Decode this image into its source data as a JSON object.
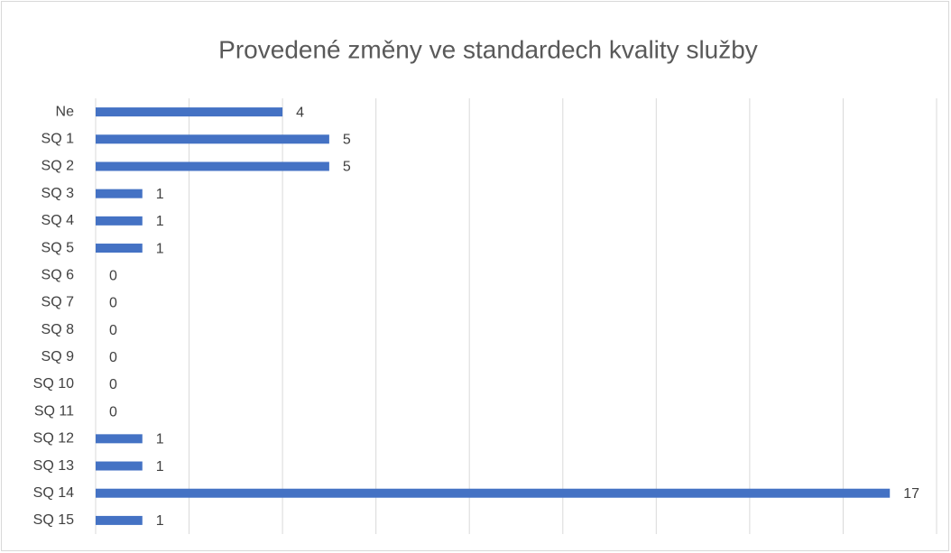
{
  "chart_data": {
    "type": "barh",
    "title": "Provedené změny ve standardech kvality služby",
    "categories": [
      "Ne",
      "SQ 1",
      "SQ 2",
      "SQ 3",
      "SQ 4",
      "SQ 5",
      "SQ 6",
      "SQ 7",
      "SQ 8",
      "SQ 9",
      "SQ 10",
      "SQ 11",
      "SQ 12",
      "SQ 13",
      "SQ 14",
      "SQ 15"
    ],
    "values": [
      4,
      5,
      5,
      1,
      1,
      1,
      0,
      0,
      0,
      0,
      0,
      0,
      1,
      1,
      17,
      1
    ],
    "color": "#4472c4",
    "xlim": [
      0,
      18
    ],
    "xticks": [
      0,
      2,
      4,
      6,
      8,
      10,
      12,
      14,
      16,
      18
    ],
    "grid": true
  }
}
